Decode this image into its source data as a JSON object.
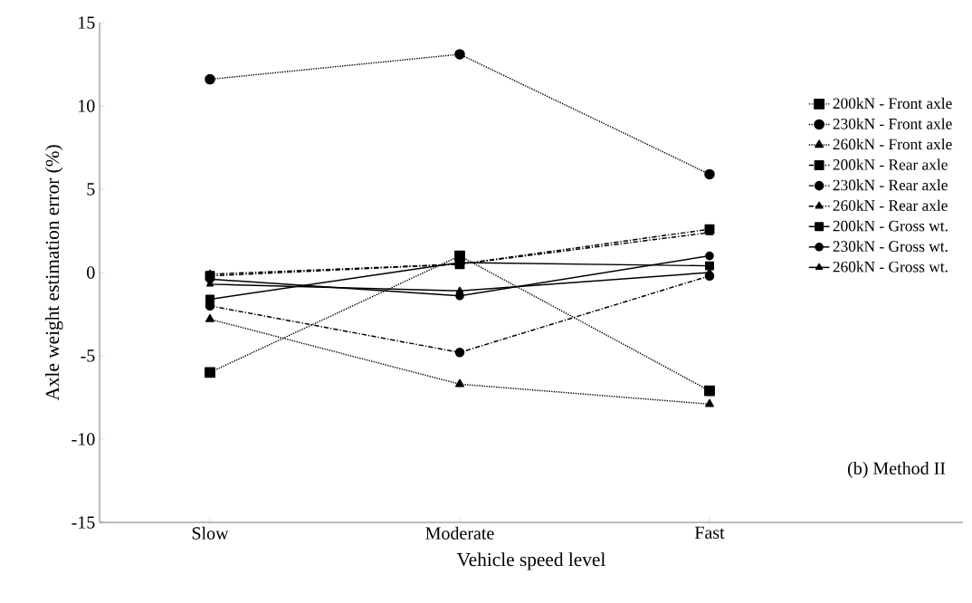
{
  "chart_data": {
    "type": "line",
    "xlabel": "Vehicle speed level",
    "ylabel": "Axle weight estimation error (%)",
    "categories": [
      "Slow",
      "Moderate",
      "Fast"
    ],
    "series": [
      {
        "name": "200kN - Front axle",
        "color": "#000000",
        "marker": "square",
        "line_style": "dotted",
        "values": [
          -6.0,
          1.0,
          -7.1
        ]
      },
      {
        "name": "230kN - Front axle",
        "color": "#000000",
        "marker": "circle",
        "line_style": "dotted",
        "values": [
          11.6,
          13.1,
          5.9
        ]
      },
      {
        "name": "260kN - Front axle",
        "color": "#000000",
        "marker": "triangle",
        "line_style": "dotted",
        "values": [
          -2.8,
          -6.7,
          -7.9
        ]
      },
      {
        "name": "200kN - Rear axle",
        "color": "#000000",
        "marker": "square",
        "line_style": "dashed",
        "values": [
          -0.2,
          0.5,
          2.6
        ]
      },
      {
        "name": "230kN - Rear axle",
        "color": "#000000",
        "marker": "circle",
        "line_style": "dashed",
        "values": [
          -2.0,
          -4.8,
          -0.2
        ]
      },
      {
        "name": "260kN - Rear axle",
        "color": "#000000",
        "marker": "triangle",
        "line_style": "dashed",
        "values": [
          -0.1,
          0.5,
          2.4
        ]
      },
      {
        "name": "200kN - Gross wt.",
        "color": "#000000",
        "marker": "square",
        "line_style": "solid",
        "values": [
          -1.6,
          0.6,
          0.4
        ]
      },
      {
        "name": "230kN - Gross wt.",
        "color": "#000000",
        "marker": "circle",
        "line_style": "solid",
        "values": [
          -0.4,
          -1.4,
          1.0
        ]
      },
      {
        "name": "260kN - Gross wt.",
        "color": "#000000",
        "marker": "triangle",
        "line_style": "solid",
        "values": [
          -0.7,
          -1.1,
          0.0
        ]
      }
    ],
    "ylim": [
      -15,
      15
    ],
    "yticks": [
      -15,
      -10,
      -5,
      0,
      5,
      10,
      15
    ],
    "grid": false,
    "legend": "right",
    "annotations": [
      "(b) Method II"
    ]
  }
}
